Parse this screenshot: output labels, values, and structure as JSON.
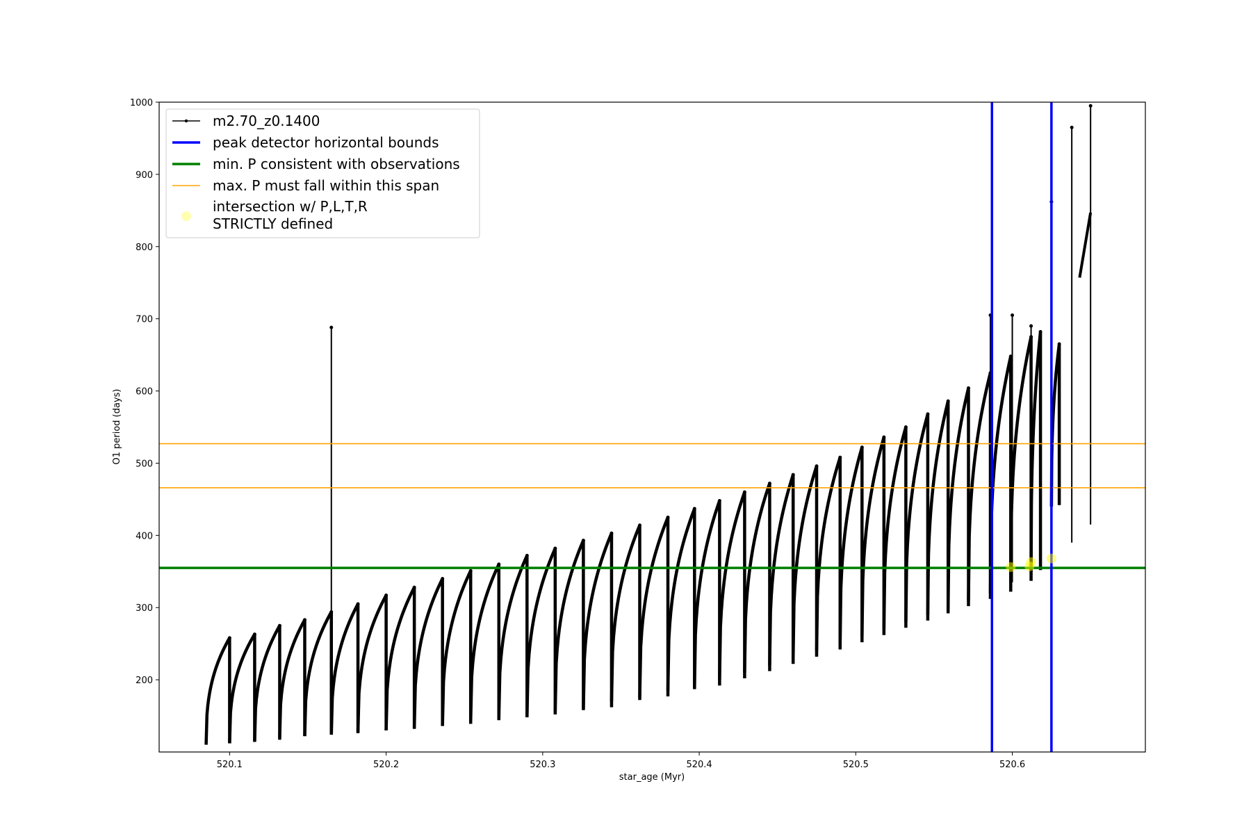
{
  "chart_data": {
    "type": "line",
    "title": "",
    "xlabel": "star_age (Myr)",
    "ylabel": "O1 period (days)",
    "xlim": [
      520.055,
      520.685
    ],
    "ylim": [
      100,
      1000
    ],
    "xticks": [
      520.1,
      520.2,
      520.3,
      520.4,
      520.5,
      520.6
    ],
    "xtick_labels": [
      "520.1",
      "520.2",
      "520.3",
      "520.4",
      "520.5",
      "520.6"
    ],
    "yticks": [
      200,
      300,
      400,
      500,
      600,
      700,
      800,
      900,
      1000
    ],
    "ytick_labels": [
      "200",
      "300",
      "400",
      "500",
      "600",
      "700",
      "800",
      "900",
      "1000"
    ],
    "grid": false,
    "legend_position": "upper-left",
    "colors": {
      "model": "#000000",
      "bounds": "#0000ff",
      "min_period": "#008000",
      "max_period": "#ffa500",
      "intersection": "#ffff00"
    },
    "series": [
      {
        "name": "m2.70_z0.1400",
        "style": "black line with dot markers, sawtooth pulse cycles",
        "cycles": [
          {
            "start": 520.085,
            "end": 520.1,
            "min": 110,
            "max": 258
          },
          {
            "start": 520.1,
            "end": 520.116,
            "min": 112,
            "max": 263
          },
          {
            "start": 520.116,
            "end": 520.132,
            "min": 115,
            "max": 275
          },
          {
            "start": 520.132,
            "end": 520.148,
            "min": 120,
            "max": 283
          },
          {
            "start": 520.148,
            "end": 520.165,
            "min": 122,
            "max": 294
          },
          {
            "start": 520.165,
            "end": 520.182,
            "min": 124,
            "max": 305
          },
          {
            "start": 520.182,
            "end": 520.2,
            "min": 128,
            "max": 317
          },
          {
            "start": 520.2,
            "end": 520.218,
            "min": 130,
            "max": 328
          },
          {
            "start": 520.218,
            "end": 520.236,
            "min": 134,
            "max": 340
          },
          {
            "start": 520.236,
            "end": 520.254,
            "min": 137,
            "max": 351
          },
          {
            "start": 520.254,
            "end": 520.272,
            "min": 142,
            "max": 360
          },
          {
            "start": 520.272,
            "end": 520.29,
            "min": 146,
            "max": 372
          },
          {
            "start": 520.29,
            "end": 520.308,
            "min": 150,
            "max": 382
          },
          {
            "start": 520.308,
            "end": 520.326,
            "min": 156,
            "max": 393
          },
          {
            "start": 520.326,
            "end": 520.344,
            "min": 160,
            "max": 403
          },
          {
            "start": 520.344,
            "end": 520.362,
            "min": 170,
            "max": 414
          },
          {
            "start": 520.362,
            "end": 520.38,
            "min": 175,
            "max": 425
          },
          {
            "start": 520.38,
            "end": 520.397,
            "min": 185,
            "max": 437
          },
          {
            "start": 520.397,
            "end": 520.413,
            "min": 190,
            "max": 448
          },
          {
            "start": 520.413,
            "end": 520.429,
            "min": 200,
            "max": 460
          },
          {
            "start": 520.429,
            "end": 520.445,
            "min": 210,
            "max": 472
          },
          {
            "start": 520.445,
            "end": 520.46,
            "min": 220,
            "max": 484
          },
          {
            "start": 520.46,
            "end": 520.475,
            "min": 230,
            "max": 496
          },
          {
            "start": 520.475,
            "end": 520.49,
            "min": 240,
            "max": 508
          },
          {
            "start": 520.49,
            "end": 520.504,
            "min": 250,
            "max": 522
          },
          {
            "start": 520.504,
            "end": 520.518,
            "min": 260,
            "max": 536
          },
          {
            "start": 520.518,
            "end": 520.532,
            "min": 270,
            "max": 550
          },
          {
            "start": 520.532,
            "end": 520.546,
            "min": 280,
            "max": 568
          },
          {
            "start": 520.546,
            "end": 520.559,
            "min": 290,
            "max": 586
          },
          {
            "start": 520.559,
            "end": 520.572,
            "min": 300,
            "max": 604
          },
          {
            "start": 520.572,
            "end": 520.586,
            "min": 310,
            "max": 625
          },
          {
            "start": 520.586,
            "end": 520.599,
            "min": 320,
            "max": 648
          },
          {
            "start": 520.599,
            "end": 520.612,
            "min": 335,
            "max": 675
          },
          {
            "start": 520.612,
            "end": 520.618,
            "min": 350,
            "max": 682
          },
          {
            "start": 520.625,
            "end": 520.63,
            "min": 440,
            "max": 665
          }
        ],
        "spikes": [
          {
            "x": 520.165,
            "min": 290,
            "max": 688
          },
          {
            "x": 520.586,
            "min": 320,
            "max": 705
          },
          {
            "x": 520.6,
            "min": 335,
            "max": 705
          },
          {
            "x": 520.612,
            "min": 350,
            "max": 690
          },
          {
            "x": 520.625,
            "min": 440,
            "max": 862
          },
          {
            "x": 520.638,
            "min": 390,
            "max": 965
          },
          {
            "x": 520.65,
            "min": 415,
            "max": 995
          }
        ],
        "tail_segment": {
          "x": [
            520.643,
            520.65
          ],
          "y": [
            757,
            847
          ]
        }
      },
      {
        "name": "peak detector horizontal bounds",
        "type": "vline",
        "x": [
          520.587,
          520.625
        ]
      },
      {
        "name": "min. P consistent with observations",
        "type": "hline",
        "y": 355
      },
      {
        "name": "max. P must fall within this span",
        "type": "hline",
        "y": [
          466,
          527
        ]
      },
      {
        "name": "intersection w/ P,L,T,R STRICTLY defined",
        "type": "scatter",
        "x": [
          520.599,
          520.611,
          520.612,
          520.625
        ],
        "y": [
          356,
          357,
          363,
          368
        ]
      }
    ],
    "legend": [
      {
        "label": "m2.70_z0.1400"
      },
      {
        "label": "peak detector horizontal bounds"
      },
      {
        "label": "min. P consistent with observations"
      },
      {
        "label": "max. P must fall within this span"
      },
      {
        "label_line1": "intersection w/ P,L,T,R",
        "label_line2": "STRICTLY defined"
      }
    ]
  }
}
